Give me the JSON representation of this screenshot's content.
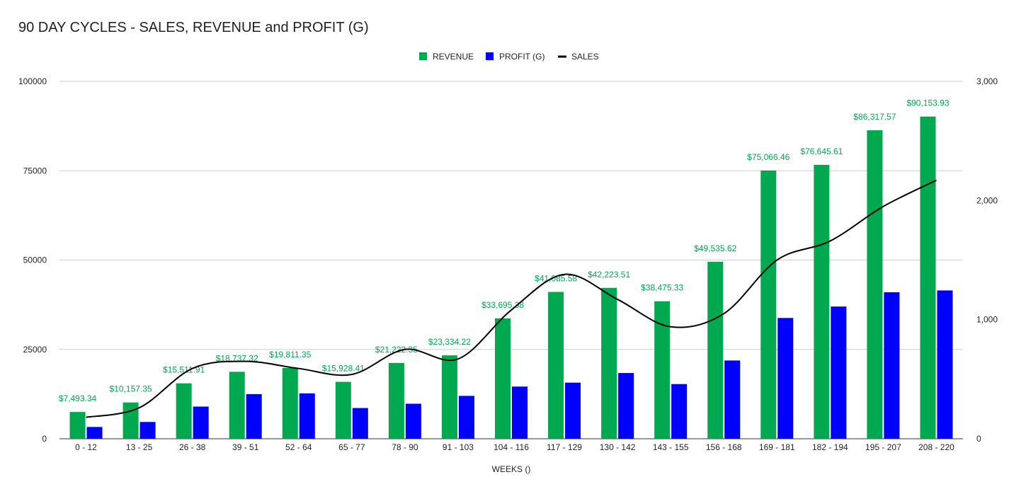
{
  "chart_data": {
    "type": "bar",
    "title": "90 DAY CYCLES - SALES, REVENUE and PROFIT (G)",
    "xlabel": "WEEKS ()",
    "ylabel": "",
    "ylabel_right": "",
    "categories": [
      "0 - 12",
      "13 - 25",
      "26 - 38",
      "39 - 51",
      "52 - 64",
      "65 - 77",
      "78 - 90",
      "91 - 103",
      "104 - 116",
      "117 - 129",
      "130 - 142",
      "143 - 155",
      "156 - 168",
      "169 - 181",
      "182 - 194",
      "195 - 207",
      "208 - 220"
    ],
    "ylim": [
      0,
      100000
    ],
    "y_ticks": [
      "0",
      "25000",
      "50000",
      "75000",
      "100000"
    ],
    "y_tick_values": [
      0,
      25000,
      50000,
      75000,
      100000
    ],
    "ylim_right": [
      0,
      3000
    ],
    "y2_ticks": [
      "0",
      "1,000",
      "2,000",
      "3,000"
    ],
    "y2_tick_values": [
      0,
      1000,
      2000,
      3000
    ],
    "grid": true,
    "legend_position": "top-center",
    "series": [
      {
        "name": "REVENUE",
        "type": "bar",
        "axis": "left",
        "color": "#00a94f",
        "values": [
          7493.34,
          10157.35,
          15511.91,
          18737.32,
          19811.35,
          15928.41,
          21222.35,
          23334.22,
          33695.38,
          41085.58,
          42223.51,
          38475.33,
          49535.62,
          75066.46,
          76645.61,
          86317.57,
          90153.93
        ],
        "labels": [
          "$7,493.34",
          "$10,157.35",
          "$15,511.91",
          "$18,737.32",
          "$19,811.35",
          "$15,928.41",
          "$21,222.35",
          "$23,334.22",
          "$33,695.38",
          "$41,085.58",
          "$42,223.51",
          "$38,475.33",
          "$49,535.62",
          "$75,066.46",
          "$76,645.61",
          "$86,317.57",
          "$90,153.93"
        ]
      },
      {
        "name": "PROFIT (G)",
        "type": "bar",
        "axis": "left",
        "color": "#0000ff",
        "values": [
          3300,
          4700,
          9000,
          12500,
          12700,
          8600,
          9800,
          12000,
          14600,
          15700,
          18400,
          15300,
          21900,
          33800,
          37000,
          41000,
          41500
        ]
      },
      {
        "name": "SALES",
        "type": "line",
        "axis": "right",
        "color": "#000000",
        "values": [
          180,
          260,
          590,
          650,
          590,
          540,
          750,
          670,
          1080,
          1380,
          1170,
          940,
          1050,
          1500,
          1660,
          1950,
          2170
        ]
      }
    ]
  }
}
